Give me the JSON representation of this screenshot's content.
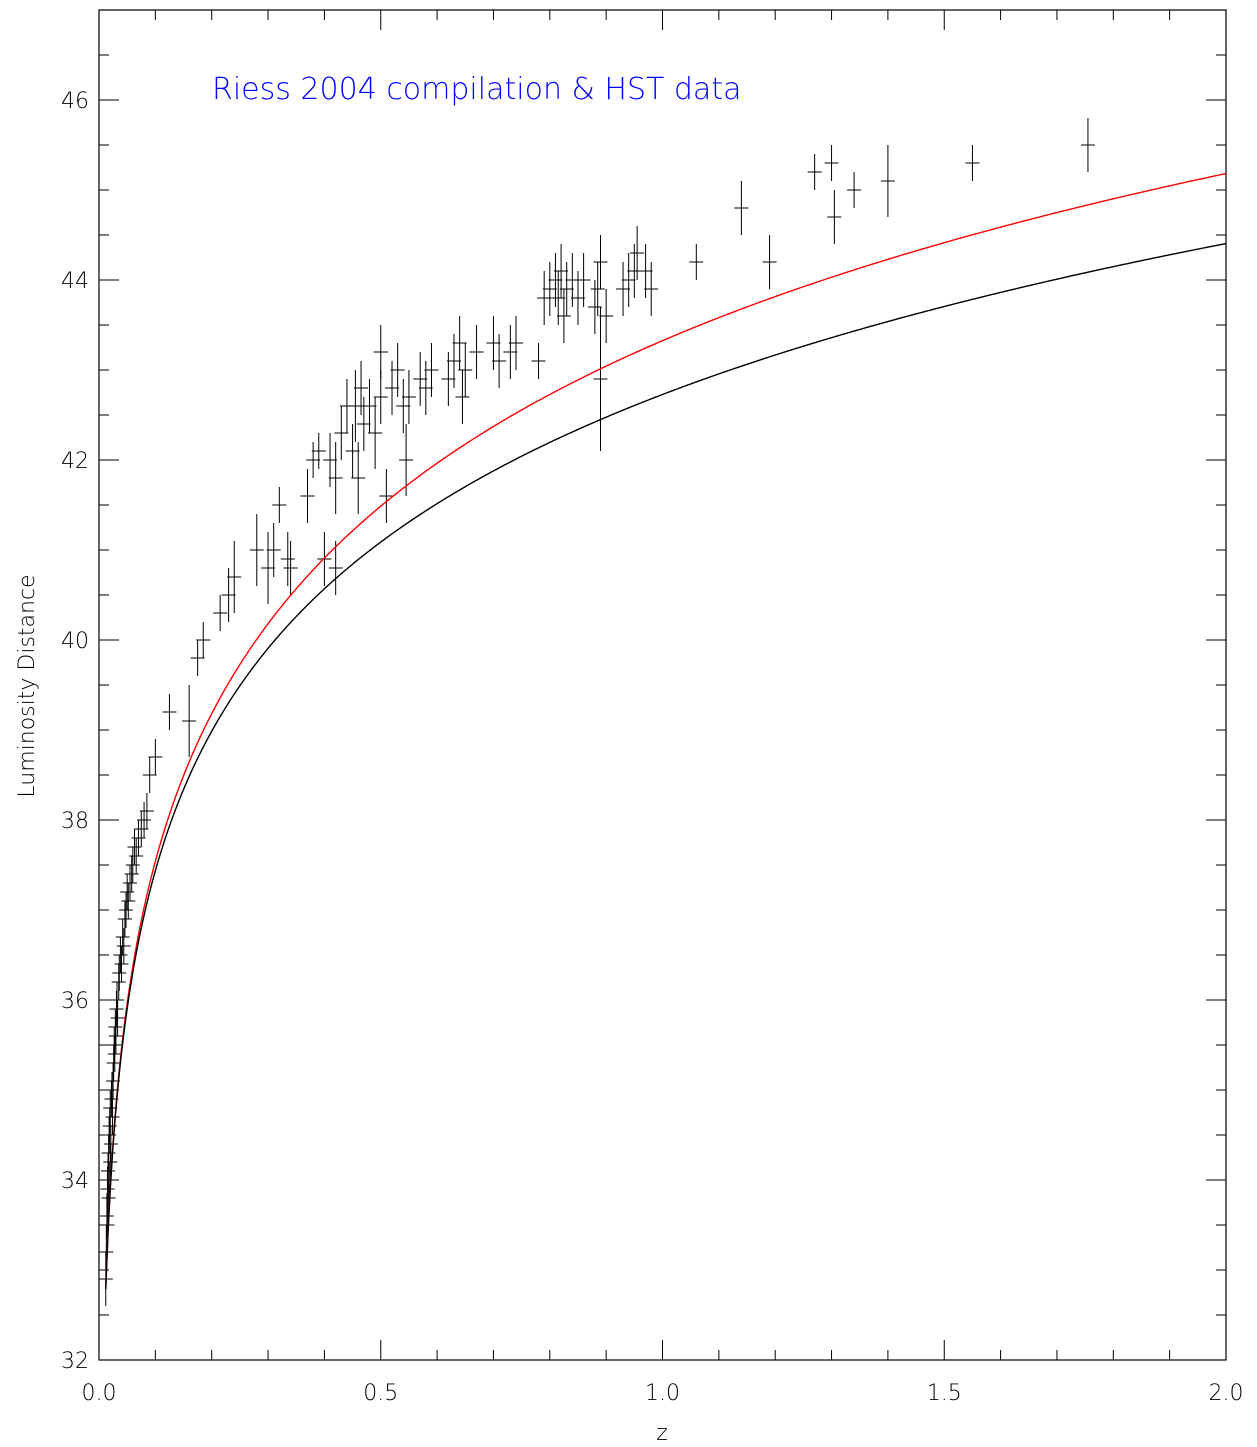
{
  "chart_data": {
    "type": "scatter",
    "title": "Riess 2004 compilation & HST data",
    "title_color": "#0000ff",
    "xlabel": "z",
    "ylabel": "Luminosity Distance",
    "xlim": [
      0.0,
      2.0
    ],
    "ylim": [
      32,
      47
    ],
    "x_ticks": [
      0.0,
      0.5,
      1.0,
      1.5,
      2.0
    ],
    "x_tick_labels": [
      "0.0",
      "0.5",
      "1.0",
      "1.5",
      "2.0"
    ],
    "x_minor_step": 0.1,
    "y_ticks": [
      32,
      34,
      36,
      38,
      40,
      42,
      44,
      46
    ],
    "y_tick_labels": [
      "32",
      "34",
      "36",
      "38",
      "40",
      "42",
      "44",
      "46"
    ],
    "y_minor_step": 0.5,
    "grid": false,
    "series": [
      {
        "style": "error-cross",
        "color": "#000000",
        "points": [
          [
            0.012,
            32.9,
            0.3
          ],
          [
            0.013,
            33.2,
            0.3
          ],
          [
            0.014,
            33.6,
            0.25
          ],
          [
            0.015,
            33.5,
            0.25
          ],
          [
            0.015,
            33.9,
            0.25
          ],
          [
            0.016,
            34.1,
            0.2
          ],
          [
            0.017,
            33.8,
            0.2
          ],
          [
            0.017,
            34.3,
            0.2
          ],
          [
            0.018,
            34.5,
            0.2
          ],
          [
            0.018,
            34.0,
            0.2
          ],
          [
            0.019,
            34.6,
            0.2
          ],
          [
            0.02,
            34.2,
            0.2
          ],
          [
            0.02,
            34.8,
            0.2
          ],
          [
            0.021,
            34.4,
            0.2
          ],
          [
            0.022,
            34.9,
            0.2
          ],
          [
            0.023,
            35.0,
            0.2
          ],
          [
            0.024,
            34.7,
            0.2
          ],
          [
            0.025,
            35.1,
            0.2
          ],
          [
            0.026,
            35.3,
            0.2
          ],
          [
            0.027,
            35.5,
            0.2
          ],
          [
            0.028,
            35.4,
            0.2
          ],
          [
            0.029,
            35.7,
            0.2
          ],
          [
            0.03,
            35.6,
            0.2
          ],
          [
            0.031,
            35.9,
            0.2
          ],
          [
            0.032,
            36.0,
            0.2
          ],
          [
            0.033,
            35.8,
            0.2
          ],
          [
            0.035,
            36.2,
            0.2
          ],
          [
            0.036,
            36.3,
            0.2
          ],
          [
            0.038,
            36.5,
            0.2
          ],
          [
            0.04,
            36.4,
            0.2
          ],
          [
            0.042,
            36.7,
            0.2
          ],
          [
            0.044,
            36.6,
            0.2
          ],
          [
            0.046,
            36.9,
            0.2
          ],
          [
            0.048,
            37.0,
            0.2
          ],
          [
            0.05,
            37.2,
            0.2
          ],
          [
            0.052,
            37.1,
            0.2
          ],
          [
            0.055,
            37.3,
            0.2
          ],
          [
            0.058,
            37.4,
            0.2
          ],
          [
            0.06,
            37.5,
            0.2
          ],
          [
            0.063,
            37.7,
            0.2
          ],
          [
            0.066,
            37.6,
            0.2
          ],
          [
            0.07,
            37.8,
            0.2
          ],
          [
            0.075,
            37.9,
            0.2
          ],
          [
            0.08,
            38.0,
            0.2
          ],
          [
            0.085,
            38.1,
            0.2
          ],
          [
            0.09,
            38.5,
            0.2
          ],
          [
            0.1,
            38.7,
            0.2
          ],
          [
            0.125,
            39.2,
            0.2
          ],
          [
            0.16,
            39.1,
            0.4
          ],
          [
            0.175,
            39.8,
            0.2
          ],
          [
            0.185,
            40.0,
            0.2
          ],
          [
            0.215,
            40.3,
            0.2
          ],
          [
            0.23,
            40.5,
            0.3
          ],
          [
            0.24,
            40.7,
            0.4
          ],
          [
            0.28,
            41.0,
            0.4
          ],
          [
            0.3,
            40.8,
            0.4
          ],
          [
            0.31,
            41.0,
            0.3
          ],
          [
            0.32,
            41.5,
            0.2
          ],
          [
            0.335,
            40.9,
            0.3
          ],
          [
            0.34,
            40.8,
            0.3
          ],
          [
            0.37,
            41.6,
            0.3
          ],
          [
            0.38,
            42.0,
            0.2
          ],
          [
            0.39,
            42.1,
            0.2
          ],
          [
            0.4,
            40.9,
            0.3
          ],
          [
            0.41,
            42.0,
            0.3
          ],
          [
            0.42,
            40.8,
            0.3
          ],
          [
            0.42,
            41.8,
            0.4
          ],
          [
            0.43,
            42.3,
            0.3
          ],
          [
            0.44,
            42.6,
            0.3
          ],
          [
            0.45,
            42.1,
            0.3
          ],
          [
            0.455,
            42.6,
            0.4
          ],
          [
            0.46,
            41.8,
            0.4
          ],
          [
            0.465,
            42.8,
            0.3
          ],
          [
            0.47,
            42.4,
            0.3
          ],
          [
            0.48,
            42.6,
            0.3
          ],
          [
            0.49,
            42.3,
            0.4
          ],
          [
            0.5,
            43.2,
            0.3
          ],
          [
            0.5,
            42.7,
            0.3
          ],
          [
            0.51,
            41.6,
            0.3
          ],
          [
            0.52,
            42.8,
            0.3
          ],
          [
            0.53,
            43.0,
            0.3
          ],
          [
            0.54,
            42.6,
            0.3
          ],
          [
            0.545,
            42.0,
            0.4
          ],
          [
            0.55,
            42.7,
            0.3
          ],
          [
            0.57,
            42.9,
            0.3
          ],
          [
            0.58,
            42.8,
            0.3
          ],
          [
            0.59,
            43.0,
            0.3
          ],
          [
            0.62,
            42.9,
            0.3
          ],
          [
            0.63,
            43.1,
            0.3
          ],
          [
            0.64,
            43.3,
            0.3
          ],
          [
            0.645,
            42.7,
            0.3
          ],
          [
            0.65,
            43.0,
            0.3
          ],
          [
            0.67,
            43.2,
            0.3
          ],
          [
            0.7,
            43.3,
            0.3
          ],
          [
            0.71,
            43.1,
            0.3
          ],
          [
            0.73,
            43.2,
            0.3
          ],
          [
            0.74,
            43.3,
            0.3
          ],
          [
            0.78,
            43.1,
            0.2
          ],
          [
            0.79,
            43.8,
            0.3
          ],
          [
            0.8,
            43.9,
            0.3
          ],
          [
            0.81,
            44.0,
            0.3
          ],
          [
            0.815,
            43.8,
            0.3
          ],
          [
            0.82,
            44.1,
            0.3
          ],
          [
            0.825,
            43.6,
            0.3
          ],
          [
            0.83,
            43.9,
            0.3
          ],
          [
            0.84,
            44.0,
            0.3
          ],
          [
            0.85,
            43.8,
            0.3
          ],
          [
            0.86,
            44.0,
            0.3
          ],
          [
            0.88,
            43.7,
            0.3
          ],
          [
            0.885,
            43.9,
            0.3
          ],
          [
            0.89,
            44.2,
            0.3
          ],
          [
            0.89,
            42.9,
            0.8
          ],
          [
            0.9,
            43.6,
            0.3
          ],
          [
            0.93,
            43.9,
            0.3
          ],
          [
            0.94,
            44.0,
            0.3
          ],
          [
            0.95,
            44.1,
            0.3
          ],
          [
            0.955,
            44.3,
            0.3
          ],
          [
            0.97,
            44.1,
            0.3
          ],
          [
            0.98,
            43.9,
            0.3
          ],
          [
            1.06,
            44.2,
            0.2
          ],
          [
            1.14,
            44.8,
            0.3
          ],
          [
            1.19,
            44.2,
            0.3
          ],
          [
            1.27,
            45.2,
            0.2
          ],
          [
            1.3,
            45.3,
            0.2
          ],
          [
            1.305,
            44.7,
            0.3
          ],
          [
            1.34,
            45.0,
            0.2
          ],
          [
            1.4,
            45.1,
            0.4
          ],
          [
            1.55,
            45.3,
            0.2
          ],
          [
            1.755,
            45.5,
            0.3
          ]
        ]
      },
      {
        "style": "line",
        "color": "#ff0000",
        "omega_m": 0.3,
        "omega_lambda": 0.7
      },
      {
        "style": "line",
        "color": "#000000",
        "omega_m": 1.0,
        "omega_lambda": 0.0
      }
    ]
  }
}
